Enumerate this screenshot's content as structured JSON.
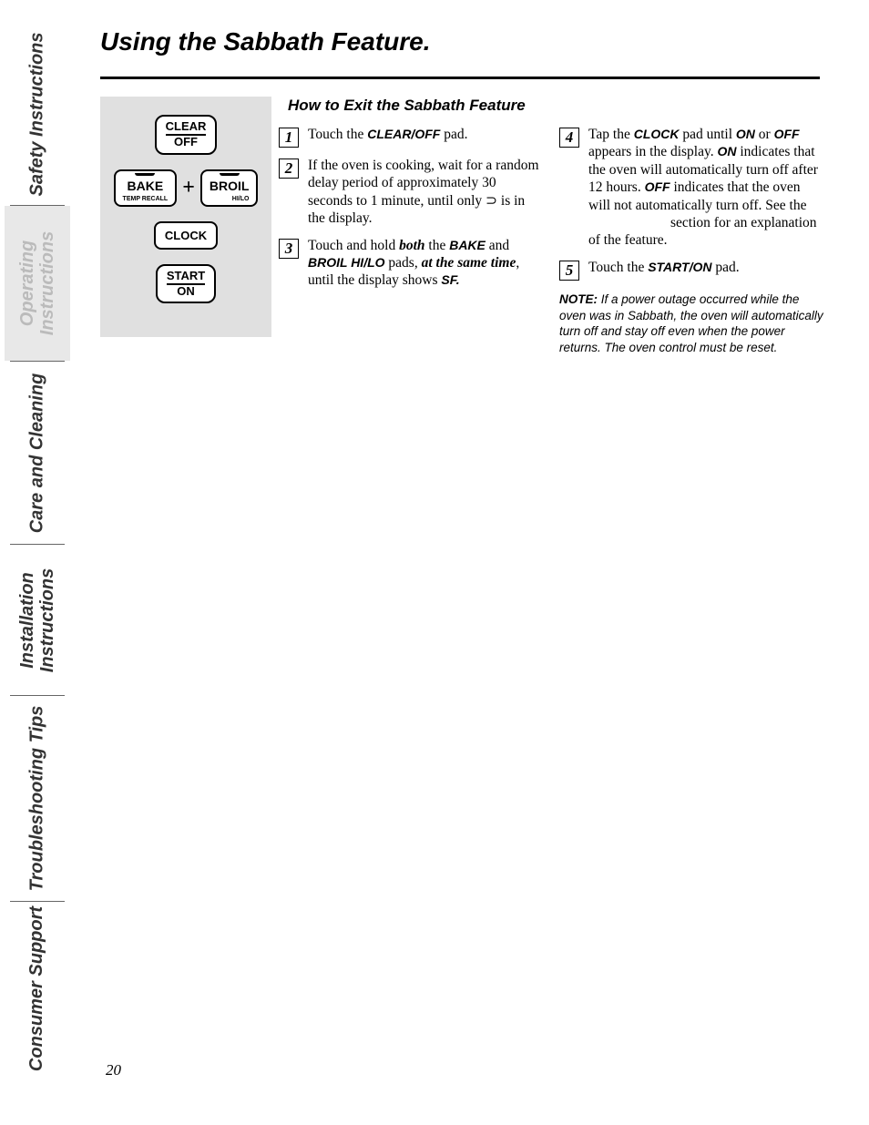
{
  "sidebar": {
    "tabs": [
      {
        "label": "Safety Instructions"
      },
      {
        "label_line1": "Operating",
        "label_line2": "Instructions"
      },
      {
        "label": "Care and Cleaning"
      },
      {
        "label_line1": "Installation",
        "label_line2": "Instructions"
      },
      {
        "label": "Troubleshooting Tips"
      },
      {
        "label": "Consumer Support"
      }
    ]
  },
  "page_title": "Using the Sabbath Feature.",
  "section_title": "How to Exit the Sabbath Feature",
  "control_panel": {
    "clear_off_top": "CLEAR",
    "clear_off_bottom": "OFF",
    "bake": "BAKE",
    "bake_sub": "TEMP RECALL",
    "plus": "+",
    "broil": "BROIL",
    "broil_sub": "HI/LO",
    "clock": "CLOCK",
    "start_top": "START",
    "start_bottom": "ON"
  },
  "steps": {
    "s1_num": "1",
    "s1_a": "Touch the ",
    "s1_b": "CLEAR/OFF",
    "s1_c": " pad.",
    "s2_num": "2",
    "s2_a": "If the oven is cooking, wait for a random delay period of approximately 30 seconds to 1 minute, until only ",
    "s2_b": "⊃",
    "s2_c": " is in the display.",
    "s3_num": "3",
    "s3_a": "Touch and hold ",
    "s3_b": "both",
    "s3_c": " the ",
    "s3_d": "BAKE",
    "s3_e": " and ",
    "s3_f": "BROIL HI/LO",
    "s3_g": " pads, ",
    "s3_h": "at the same time",
    "s3_i": ", until the display shows ",
    "s3_j": "SF.",
    "s4_num": "4",
    "s4_a": "Tap the ",
    "s4_b": "CLOCK",
    "s4_c": " pad until ",
    "s4_d": "ON",
    "s4_e": " or ",
    "s4_f": "OFF",
    "s4_g": " appears in the display. ",
    "s4_h": "ON",
    "s4_i": " indicates that the oven will automatically turn off after 12 hours. ",
    "s4_j": "OFF",
    "s4_k": " indicates that the oven will not automatically turn off. See the ",
    "s4_l": "section for an explanation of the feature.",
    "s5_num": "5",
    "s5_a": "Touch the ",
    "s5_b": "START/ON",
    "s5_c": " pad."
  },
  "note": {
    "label": "NOTE:",
    "text": " If a power outage occurred while the oven was in Sabbath, the oven will automatically turn off and stay off even when the power returns. The oven control must be reset."
  },
  "page_number": "20"
}
